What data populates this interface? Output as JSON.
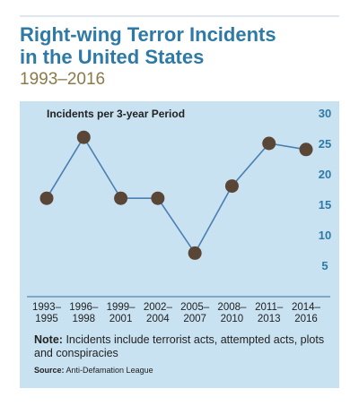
{
  "title_line1": "Right-wing Terror Incidents",
  "title_line2": "in the United States",
  "subtitle": "1993–2016",
  "note_label": "Note:",
  "note_text": "Incidents include terrorist acts, attempted acts, plots and conspiracies",
  "source_label": "Source:",
  "source_text": "Anti-Defamation League",
  "colors": {
    "line": "#4a7fb3",
    "marker": "#5a4636",
    "axis": "#2f79a6",
    "panel": "#c8e2f1"
  },
  "chart_data": {
    "type": "line",
    "ylabel": "Incidents per 3-year Period",
    "ylim": [
      0,
      30
    ],
    "yticks": [
      5,
      10,
      15,
      20,
      25,
      30
    ],
    "categories": [
      [
        "1993–",
        "1995"
      ],
      [
        "1996–",
        "1998"
      ],
      [
        "1999–",
        "2001"
      ],
      [
        "2002–",
        "2004"
      ],
      [
        "2005–",
        "2007"
      ],
      [
        "2008–",
        "2010"
      ],
      [
        "2011–",
        "2013"
      ],
      [
        "2014–",
        "2016"
      ]
    ],
    "values": [
      16,
      26,
      16,
      16,
      7,
      18,
      25,
      24
    ],
    "grid": false,
    "legend": "none"
  }
}
